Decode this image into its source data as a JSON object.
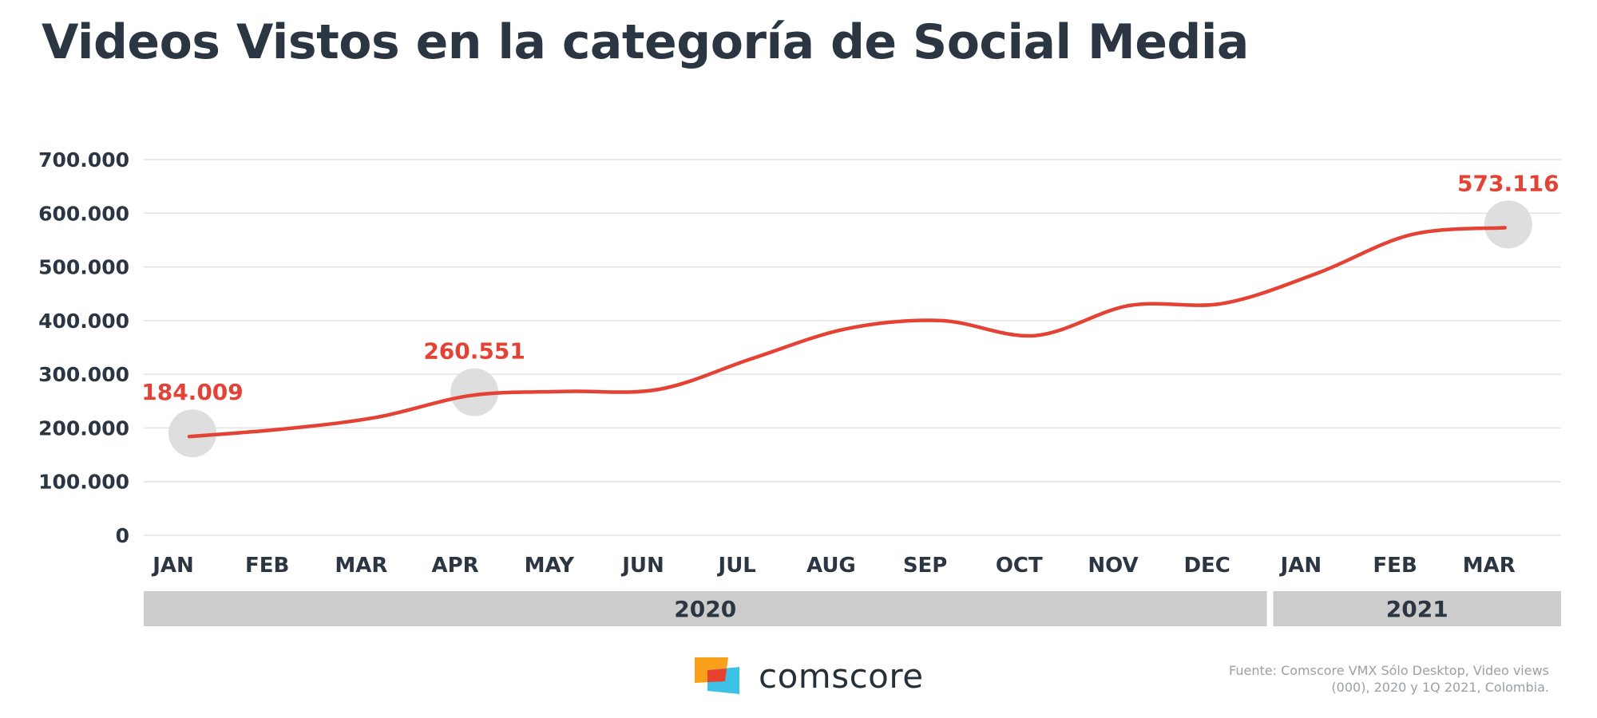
{
  "page": {
    "title": "Videos Vistos en la categoría de Social Media",
    "source_note": "Fuente: Comscore VMX Sólo Desktop, Video views (000), 2020 y 1Q 2021, Colombia.",
    "logo_text": "comscore",
    "logo_colors": [
      "#f9a01b",
      "#e8412e",
      "#3dc1e6"
    ]
  },
  "chart_data": {
    "type": "line",
    "title": "Videos Vistos en la categoría de Social Media",
    "xlabel": "",
    "ylabel": "",
    "categories": [
      "JAN",
      "FEB",
      "MAR",
      "APR",
      "MAY",
      "JUN",
      "JUL",
      "AUG",
      "SEP",
      "OCT",
      "NOV",
      "DEC",
      "JAN",
      "FEB",
      "MAR"
    ],
    "year_groups": [
      {
        "label": "2020",
        "count": 12
      },
      {
        "label": "2021",
        "count": 3
      }
    ],
    "series": [
      {
        "values": [
          184009,
          198000,
          220000,
          260551,
          268000,
          272000,
          330000,
          385000,
          400000,
          372000,
          428000,
          432000,
          488000,
          560000,
          573116
        ],
        "color": "#e34234"
      }
    ],
    "highlighted_points": [
      0,
      3,
      14
    ],
    "data_labels": [
      {
        "index": 0,
        "text": "184.009"
      },
      {
        "index": 3,
        "text": "260.551"
      },
      {
        "index": 14,
        "text": "573.116"
      }
    ],
    "ylim": [
      0,
      700000
    ],
    "yticks": [
      0,
      100000,
      200000,
      300000,
      400000,
      500000,
      600000,
      700000
    ],
    "ytick_labels": [
      "0",
      "100.000",
      "200.000",
      "300.000",
      "400.000",
      "500.000",
      "600.000",
      "700.000"
    ],
    "grid": true,
    "legend": "none"
  }
}
